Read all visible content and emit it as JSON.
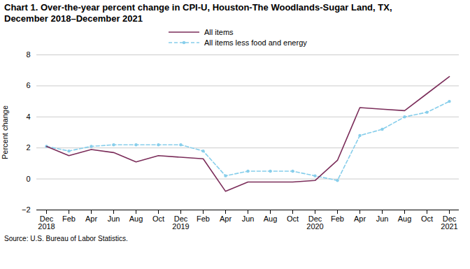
{
  "chart_data": {
    "type": "line",
    "title": "Chart 1. Over-the-year percent change in CPI-U, Houston-The  Woodlands-Sugar Land, TX,\nDecember 2018–December 2021",
    "ylabel": "Percent change",
    "source": "Source: U.S. Bureau of Labor Statistics.",
    "categories": [
      "Dec\n2018",
      "Feb",
      "Apr",
      "Jun",
      "Aug",
      "Oct",
      "Dec\n2019",
      "Feb",
      "Apr",
      "Jun",
      "Aug",
      "Oct",
      "Dec\n2020",
      "Feb",
      "Apr",
      "Jun",
      "Aug",
      "Oct",
      "Dec\n2021"
    ],
    "series": [
      {
        "name": "All items",
        "color": "#7b2d5a",
        "line_style": "solid",
        "marker": "none",
        "values": [
          2.1,
          1.5,
          1.9,
          1.7,
          1.1,
          1.5,
          1.4,
          1.3,
          -0.8,
          -0.2,
          -0.2,
          -0.2,
          -0.1,
          1.2,
          4.6,
          4.5,
          4.4,
          5.5,
          6.6
        ]
      },
      {
        "name": "All items less food and energy",
        "color": "#87ceeb",
        "line_style": "dashed",
        "marker": "circle",
        "values": [
          2.1,
          1.8,
          2.1,
          2.2,
          2.2,
          2.2,
          2.2,
          1.8,
          0.2,
          0.5,
          0.5,
          0.5,
          0.2,
          -0.1,
          2.8,
          3.2,
          4.0,
          4.3,
          5.0
        ]
      }
    ],
    "ylim": [
      -2.0,
      8.0
    ],
    "yticks": [
      -2.0,
      0.0,
      2.0,
      4.0,
      6.0,
      8.0
    ],
    "grid": true,
    "legend": "top"
  }
}
